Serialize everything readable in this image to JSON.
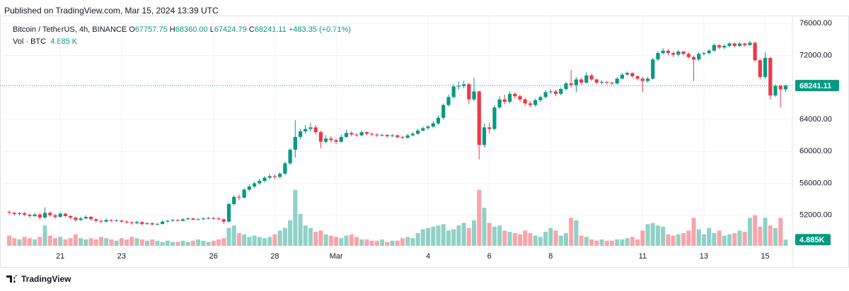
{
  "chart_data": {
    "type": "candlestick",
    "published": "Published on TradingView.com, Mar 15, 2024 13:39 UTC",
    "brand": "TradingView",
    "legend": {
      "symbol": "Bitcoin / TetherUS, 4h, BINANCE",
      "fields": [
        {
          "key": "O",
          "value": "67757.75"
        },
        {
          "key": "H",
          "value": "68360.00"
        },
        {
          "key": "L",
          "value": "67424.79"
        },
        {
          "key": "C",
          "value": "68241.11"
        }
      ],
      "change": "+483.35 (+0.71%)"
    },
    "up_color": "#089981",
    "down_color": "#f23645",
    "ylim": [
      48000,
      77000
    ],
    "yticks": [
      {
        "value": 52000,
        "label": "52000.00"
      },
      {
        "value": 56000,
        "label": "56000.00"
      },
      {
        "value": 60000,
        "label": "60000.00"
      },
      {
        "value": 64000,
        "label": "64000.00"
      },
      {
        "value": 68000,
        "label": "68000.00"
      },
      {
        "value": 72000,
        "label": "72000.00"
      },
      {
        "value": 76000,
        "label": "76000.00"
      }
    ],
    "xticks": [
      {
        "value": 10,
        "label": "21"
      },
      {
        "value": 22,
        "label": "23"
      },
      {
        "value": 40,
        "label": "26"
      },
      {
        "value": 52,
        "label": "28"
      },
      {
        "value": 64,
        "label": "Mar"
      },
      {
        "value": 82,
        "label": "4"
      },
      {
        "value": 94,
        "label": "6"
      },
      {
        "value": 106,
        "label": "8"
      },
      {
        "value": 124,
        "label": "11"
      },
      {
        "value": 136,
        "label": "13"
      },
      {
        "value": 148,
        "label": "15"
      }
    ],
    "grid": true,
    "last_price": {
      "value": 68241.11,
      "label": "68241.11"
    },
    "candles": [
      [
        52400,
        52600,
        52100,
        52300
      ],
      [
        52300,
        52450,
        51950,
        52150
      ],
      [
        52150,
        52400,
        52000,
        52250
      ],
      [
        52250,
        52400,
        51900,
        52050
      ],
      [
        52050,
        52200,
        51700,
        51900
      ],
      [
        51900,
        52300,
        51800,
        52100
      ],
      [
        52100,
        52250,
        51500,
        51700
      ],
      [
        51700,
        53000,
        51600,
        52300
      ],
      [
        52300,
        52500,
        51850,
        52000
      ],
      [
        52000,
        52150,
        51600,
        51800
      ],
      [
        51800,
        52400,
        51700,
        52200
      ],
      [
        52200,
        52300,
        51750,
        51900
      ],
      [
        51900,
        52000,
        51500,
        51700
      ],
      [
        51700,
        51800,
        51200,
        51400
      ],
      [
        51400,
        51800,
        51300,
        51600
      ],
      [
        51600,
        52000,
        51500,
        51800
      ],
      [
        51800,
        51900,
        51350,
        51500
      ],
      [
        51500,
        51650,
        51150,
        51300
      ],
      [
        51300,
        51450,
        51000,
        51200
      ],
      [
        51200,
        51600,
        51100,
        51400
      ],
      [
        51400,
        51500,
        51150,
        51300
      ],
      [
        51300,
        51500,
        51200,
        51350
      ],
      [
        51350,
        51450,
        51050,
        51200
      ],
      [
        51200,
        51350,
        50950,
        51100
      ],
      [
        51100,
        51250,
        50800,
        51000
      ],
      [
        51000,
        51300,
        50900,
        51150
      ],
      [
        51150,
        51250,
        50750,
        50900
      ],
      [
        50900,
        51150,
        50800,
        51000
      ],
      [
        51000,
        51100,
        50700,
        50850
      ],
      [
        50850,
        51050,
        50750,
        50900
      ],
      [
        50900,
        51350,
        50850,
        51200
      ],
      [
        51200,
        51450,
        51100,
        51300
      ],
      [
        51300,
        51550,
        51200,
        51400
      ],
      [
        51400,
        51500,
        51200,
        51300
      ],
      [
        51300,
        51650,
        51250,
        51500
      ],
      [
        51500,
        51750,
        51400,
        51600
      ],
      [
        51600,
        51700,
        51350,
        51450
      ],
      [
        51450,
        51650,
        51350,
        51500
      ],
      [
        51500,
        51750,
        51400,
        51600
      ],
      [
        51600,
        51800,
        51500,
        51650
      ],
      [
        51650,
        51800,
        51450,
        51600
      ],
      [
        51600,
        51750,
        51350,
        51500
      ],
      [
        51500,
        51600,
        50900,
        51200
      ],
      [
        51200,
        53600,
        51100,
        53400
      ],
      [
        53400,
        54500,
        53200,
        54300
      ],
      [
        54300,
        54600,
        53900,
        54200
      ],
      [
        54200,
        55400,
        54100,
        55200
      ],
      [
        55200,
        55900,
        55000,
        55600
      ],
      [
        55600,
        56200,
        55400,
        56000
      ],
      [
        56000,
        56600,
        55800,
        56300
      ],
      [
        56300,
        56900,
        56100,
        56700
      ],
      [
        56700,
        57200,
        56500,
        56900
      ],
      [
        56900,
        57100,
        56500,
        56800
      ],
      [
        56800,
        57400,
        56600,
        57200
      ],
      [
        57200,
        58700,
        57000,
        58500
      ],
      [
        58500,
        60400,
        58300,
        60200
      ],
      [
        60200,
        63900,
        59200,
        61800
      ],
      [
        61800,
        62800,
        61500,
        62500
      ],
      [
        62500,
        63300,
        62200,
        62800
      ],
      [
        62800,
        63600,
        62500,
        63000
      ],
      [
        63000,
        63300,
        62100,
        62400
      ],
      [
        62400,
        62600,
        60400,
        61200
      ],
      [
        61200,
        62000,
        61000,
        61600
      ],
      [
        61600,
        61900,
        61100,
        61400
      ],
      [
        61400,
        61600,
        60900,
        61200
      ],
      [
        61200,
        62100,
        61100,
        61800
      ],
      [
        61800,
        62700,
        61700,
        62300
      ],
      [
        62300,
        62500,
        61900,
        62100
      ],
      [
        62100,
        62300,
        61800,
        62000
      ],
      [
        62000,
        62600,
        61900,
        62400
      ],
      [
        62400,
        62500,
        62000,
        62200
      ],
      [
        62200,
        62350,
        61900,
        62100
      ],
      [
        62100,
        62250,
        61800,
        62000
      ],
      [
        62000,
        62200,
        61850,
        62050
      ],
      [
        62050,
        62150,
        61700,
        61900
      ],
      [
        61900,
        62150,
        61800,
        62000
      ],
      [
        62000,
        62100,
        61600,
        61800
      ],
      [
        61800,
        61950,
        61500,
        61700
      ],
      [
        61700,
        62200,
        61600,
        62000
      ],
      [
        62000,
        62400,
        61900,
        62200
      ],
      [
        62200,
        62800,
        62100,
        62600
      ],
      [
        62600,
        63100,
        62500,
        62900
      ],
      [
        62900,
        63300,
        62700,
        63100
      ],
      [
        63100,
        63800,
        62900,
        63500
      ],
      [
        63500,
        64500,
        63300,
        64200
      ],
      [
        64200,
        66000,
        64000,
        65800
      ],
      [
        65800,
        67100,
        65600,
        66800
      ],
      [
        66800,
        68400,
        66600,
        68100
      ],
      [
        68100,
        68700,
        67700,
        68200
      ],
      [
        68200,
        68800,
        67900,
        68400
      ],
      [
        68400,
        68600,
        65900,
        66500
      ],
      [
        66500,
        69200,
        66300,
        67500
      ],
      [
        67500,
        67600,
        59000,
        60800
      ],
      [
        60800,
        63500,
        60500,
        63000
      ],
      [
        63000,
        63600,
        62200,
        62800
      ],
      [
        62800,
        65800,
        62600,
        65500
      ],
      [
        65500,
        66900,
        65300,
        66500
      ],
      [
        66500,
        67100,
        65900,
        66200
      ],
      [
        66200,
        67500,
        66000,
        67200
      ],
      [
        67200,
        67400,
        66600,
        66900
      ],
      [
        66900,
        67100,
        66200,
        66500
      ],
      [
        66500,
        66700,
        65700,
        66000
      ],
      [
        66000,
        66300,
        65500,
        65800
      ],
      [
        65800,
        66600,
        65600,
        66400
      ],
      [
        66400,
        67000,
        66200,
        66800
      ],
      [
        66800,
        67700,
        66600,
        67400
      ],
      [
        67400,
        67800,
        67200,
        67500
      ],
      [
        67500,
        67700,
        66900,
        67200
      ],
      [
        67200,
        68000,
        67000,
        67800
      ],
      [
        67800,
        68700,
        67600,
        68500
      ],
      [
        68500,
        70200,
        68000,
        68300
      ],
      [
        68300,
        69300,
        67400,
        69000
      ],
      [
        69000,
        69200,
        68300,
        68600
      ],
      [
        68600,
        69900,
        68500,
        69500
      ],
      [
        69500,
        69700,
        68800,
        69000
      ],
      [
        69000,
        69100,
        68400,
        68600
      ],
      [
        68600,
        68900,
        68400,
        68700
      ],
      [
        68700,
        68800,
        68400,
        68600
      ],
      [
        68600,
        68700,
        68300,
        68500
      ],
      [
        68500,
        69300,
        68400,
        69100
      ],
      [
        69100,
        69800,
        69000,
        69600
      ],
      [
        69600,
        70000,
        69500,
        69800
      ],
      [
        69800,
        69900,
        69200,
        69400
      ],
      [
        69400,
        69500,
        68900,
        69100
      ],
      [
        69100,
        69300,
        67400,
        68800
      ],
      [
        68800,
        69300,
        68600,
        69100
      ],
      [
        69100,
        71700,
        69000,
        71500
      ],
      [
        71500,
        72500,
        71300,
        72300
      ],
      [
        72300,
        72900,
        72100,
        72600
      ],
      [
        72600,
        72800,
        72000,
        72300
      ],
      [
        72300,
        72500,
        71800,
        72100
      ],
      [
        72100,
        72700,
        71900,
        72500
      ],
      [
        72500,
        72600,
        72000,
        72200
      ],
      [
        72200,
        72400,
        71600,
        71800
      ],
      [
        71800,
        72000,
        68800,
        71500
      ],
      [
        71500,
        72400,
        71300,
        72200
      ],
      [
        72200,
        72500,
        72000,
        72300
      ],
      [
        72300,
        72800,
        72100,
        72600
      ],
      [
        72600,
        73500,
        72500,
        73300
      ],
      [
        73300,
        73400,
        72800,
        73000
      ],
      [
        73000,
        73400,
        72800,
        73200
      ],
      [
        73200,
        73700,
        73000,
        73500
      ],
      [
        73500,
        73600,
        73000,
        73200
      ],
      [
        73200,
        73700,
        73100,
        73500
      ],
      [
        73500,
        73600,
        73100,
        73300
      ],
      [
        73300,
        73800,
        73200,
        73600
      ],
      [
        73600,
        73700,
        71200,
        71400
      ],
      [
        71400,
        71600,
        69100,
        69300
      ],
      [
        69300,
        72400,
        69100,
        71700
      ],
      [
        71700,
        71800,
        66500,
        67000
      ],
      [
        67000,
        68400,
        66800,
        68200
      ],
      [
        68200,
        68300,
        65500,
        67757.75
      ],
      [
        67757.75,
        68360,
        67424.79,
        68241.11
      ]
    ],
    "volume": {
      "name": "Vol · BTC",
      "legend_value": "4.885 K",
      "badge": "4.885K",
      "ylim": [
        0,
        50
      ],
      "values": [
        8,
        6,
        5,
        7,
        6,
        5,
        7,
        16,
        8,
        6,
        7,
        5,
        6,
        9,
        6,
        5,
        6,
        5,
        7,
        6,
        5,
        4,
        6,
        5,
        7,
        6,
        5,
        4,
        5,
        4,
        3,
        4,
        3,
        3,
        4,
        3,
        4,
        5,
        4,
        3,
        4,
        5,
        6,
        14,
        16,
        10,
        9,
        7,
        8,
        7,
        6,
        7,
        9,
        12,
        14,
        20,
        44,
        25,
        16,
        14,
        11,
        12,
        9,
        8,
        7,
        6,
        8,
        9,
        7,
        5,
        5,
        4,
        4,
        5,
        3,
        4,
        4,
        6,
        7,
        6,
        10,
        13,
        14,
        15,
        16,
        17,
        12,
        13,
        16,
        18,
        14,
        20,
        44,
        30,
        18,
        15,
        16,
        12,
        11,
        10,
        9,
        12,
        10,
        8,
        7,
        11,
        14,
        12,
        8,
        10,
        22,
        20,
        8,
        7,
        5,
        4,
        5,
        4,
        4,
        5,
        5,
        6,
        7,
        5,
        12,
        17,
        18,
        16,
        15,
        9,
        8,
        9,
        10,
        12,
        22,
        13,
        9,
        14,
        10,
        12,
        8,
        9,
        10,
        12,
        11,
        22,
        24,
        15,
        22,
        16,
        14,
        22,
        4.885
      ]
    }
  }
}
